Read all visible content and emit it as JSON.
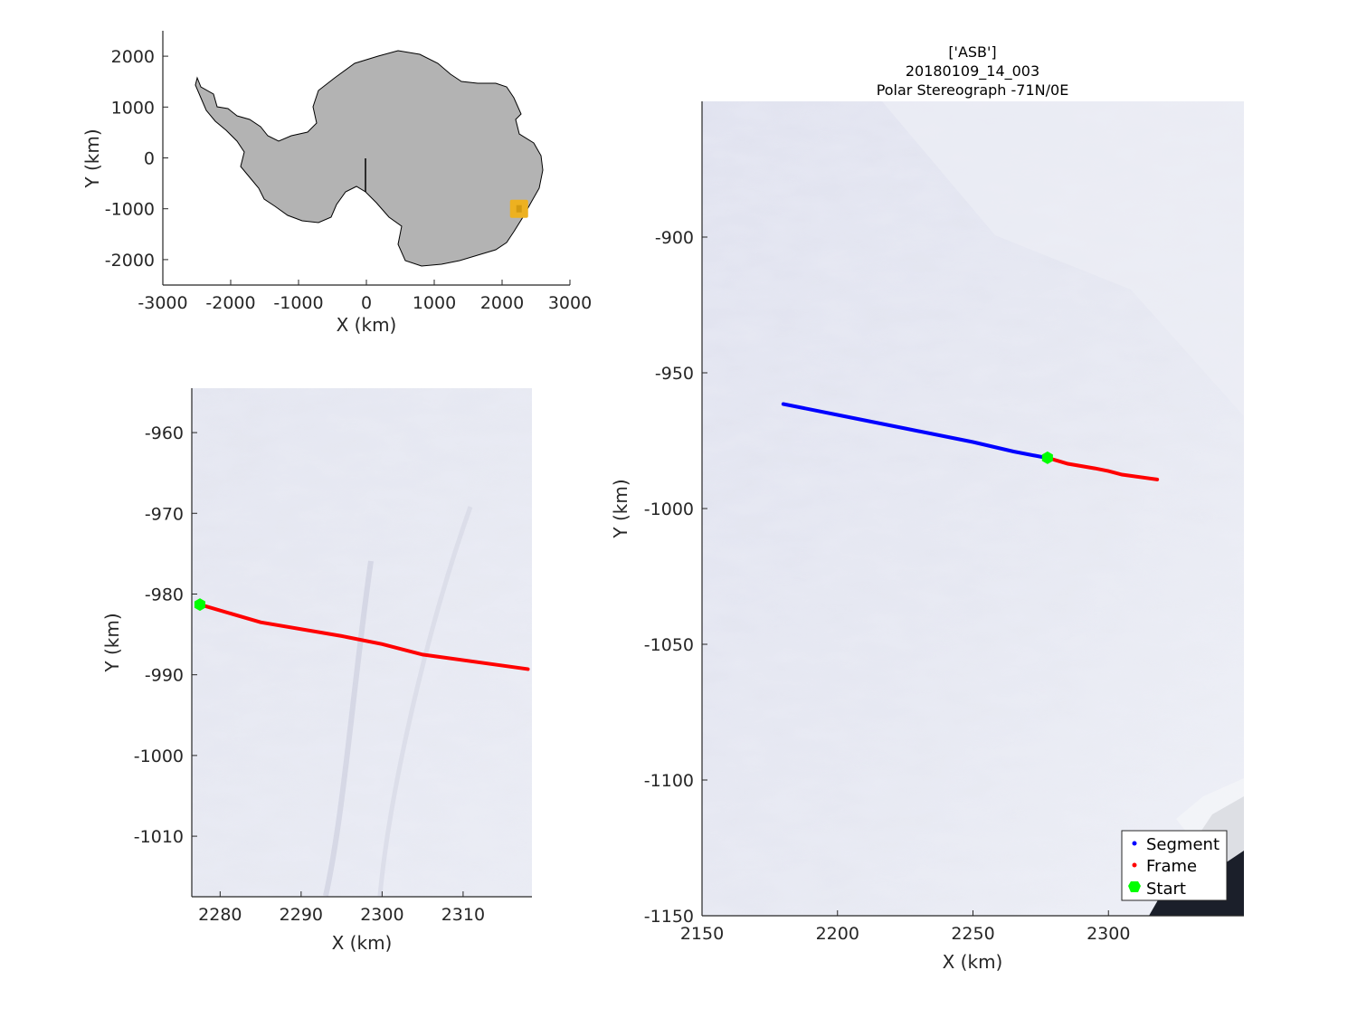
{
  "title": {
    "line1": "['ASB']",
    "line2": "20180109_14_003",
    "line3": "Polar Stereograph -71N/0E"
  },
  "overview": {
    "xlabel": "X (km)",
    "ylabel": "Y (km)",
    "xticks": [
      "-3000",
      "-2000",
      "-1000",
      "0",
      "1000",
      "2000",
      "3000"
    ],
    "yticks": [
      "2000",
      "1000",
      "0",
      "-1000",
      "-2000"
    ],
    "xlim": [
      -3000,
      3000
    ],
    "ylim": [
      -2500,
      2500
    ],
    "land_color": "#b3b3b3",
    "marker": {
      "x": 2250,
      "y": -1000,
      "color": "#edb120"
    }
  },
  "zoom_panel": {
    "xlabel": "X (km)",
    "ylabel": "Y (km)",
    "xticks": [
      "2280",
      "2290",
      "2300",
      "2310"
    ],
    "yticks": [
      "-960",
      "-970",
      "-980",
      "-990",
      "-1000",
      "-1010"
    ],
    "xlim": [
      2276.5,
      2318.5
    ],
    "ylim": [
      -1017.5,
      -954.5
    ]
  },
  "main_panel": {
    "xlabel": "X (km)",
    "ylabel": "Y (km)",
    "xticks": [
      "2150",
      "2200",
      "2250",
      "2300"
    ],
    "yticks": [
      "-900",
      "-950",
      "-1000",
      "-1050",
      "-1100",
      "-1150"
    ],
    "xlim": [
      2150,
      2350
    ],
    "ylim": [
      -1150,
      -850
    ]
  },
  "legend": {
    "items": [
      {
        "label": "Segment",
        "color": "#0000ff"
      },
      {
        "label": "Frame",
        "color": "#ff0000"
      },
      {
        "label": "Start",
        "color": "#00ff00"
      }
    ]
  },
  "chart_data": {
    "type": "line",
    "segment_track": {
      "x": [
        2180,
        2200,
        2225,
        2250,
        2265,
        2277
      ],
      "y": [
        -961.5,
        -965.5,
        -970.5,
        -975.5,
        -979,
        -981.3
      ]
    },
    "frame_track": {
      "x": [
        2277.5,
        2285,
        2295,
        2300,
        2305,
        2318
      ],
      "y": [
        -981.3,
        -983.5,
        -985.2,
        -986.2,
        -987.5,
        -989.3
      ]
    },
    "start_point": {
      "x": 2277.5,
      "y": -981.3
    }
  }
}
